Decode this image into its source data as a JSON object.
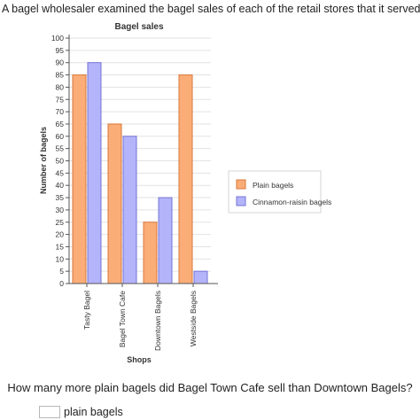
{
  "question": {
    "intro": "A bagel wholesaler examined the bagel sales of each of the retail stores that it served.",
    "prompt": "How many more plain bagels did Bagel Town Cafe sell than Downtown Bagels?",
    "unit": "plain bagels",
    "answer_value": ""
  },
  "colors": {
    "plain": "#fbad78",
    "plain_stroke": "#d9773a",
    "cinnamon": "#b4b4fb",
    "cinnamon_stroke": "#7474d6"
  },
  "chart_data": {
    "type": "bar",
    "title": "Bagel sales",
    "xlabel": "Shops",
    "ylabel": "Number of bagels",
    "categories": [
      "Tasty Bagel",
      "Bagel Town Cafe",
      "Downtown Bagels",
      "Westside Bagels"
    ],
    "series": [
      {
        "name": "Plain bagels",
        "values": [
          85,
          65,
          25,
          85
        ]
      },
      {
        "name": "Cinnamon-raisin bagels",
        "values": [
          90,
          60,
          35,
          5
        ]
      }
    ],
    "ylim": [
      0,
      100
    ],
    "ytick_step": 5,
    "grid": true,
    "legend": "right"
  }
}
